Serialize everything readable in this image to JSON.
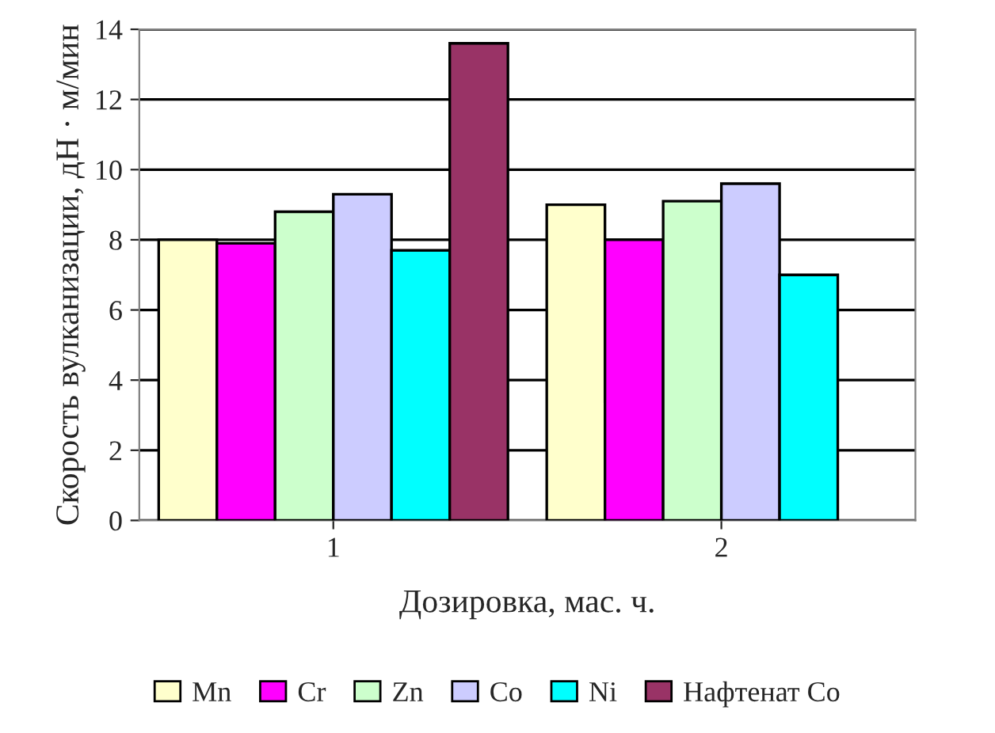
{
  "chart_data": {
    "type": "bar",
    "xlabel": "Дозировка, мас. ч.",
    "ylabel": "Скорость вулканизации, дН · м/мин",
    "categories": [
      "1",
      "2"
    ],
    "series": [
      {
        "name": "Mn",
        "color": "#ffffcc",
        "values": [
          8.0,
          9.0
        ]
      },
      {
        "name": "Cr",
        "color": "#ff00ff",
        "values": [
          7.9,
          8.0
        ]
      },
      {
        "name": "Zn",
        "color": "#ccffcc",
        "values": [
          8.8,
          9.1
        ]
      },
      {
        "name": "Co",
        "color": "#ccccff",
        "values": [
          9.3,
          9.6
        ]
      },
      {
        "name": "Ni",
        "color": "#00ffff",
        "values": [
          7.7,
          7.0
        ]
      },
      {
        "name": "Нафтенат Co",
        "color": "#993366",
        "values": [
          13.6,
          null
        ]
      }
    ],
    "ylim": [
      0,
      14
    ],
    "yticks": [
      0,
      2,
      4,
      6,
      8,
      10,
      12,
      14
    ],
    "grid": "y",
    "legend": "bottom"
  }
}
